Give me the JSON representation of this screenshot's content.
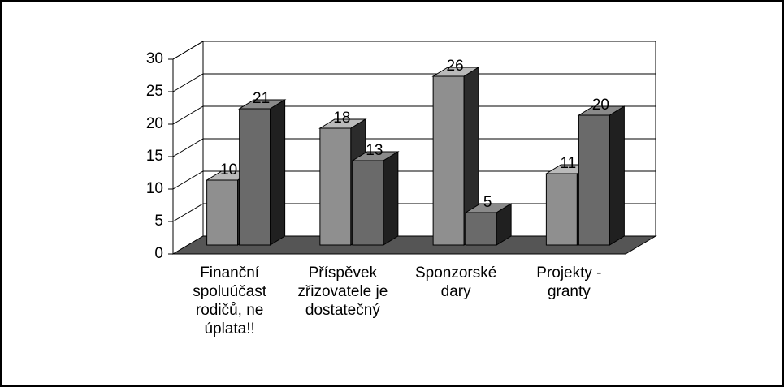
{
  "chart_data": {
    "type": "bar3d",
    "categories": [
      "Finanční\nspoluúčast\nrodičů, ne\núplata!!",
      "Příspěvek\nzřizovatele je\ndostatečný",
      "Sponzorské\ndary",
      "Projekty -\ngranty"
    ],
    "series": [
      {
        "color": "#8f8f8f",
        "values": [
          10,
          18,
          26,
          11
        ]
      },
      {
        "color": "#6a6a6a",
        "values": [
          21,
          13,
          5,
          20
        ]
      }
    ],
    "ylim": [
      0,
      30
    ],
    "yticks": [
      0,
      5,
      10,
      15,
      20,
      25,
      30
    ],
    "grid": true
  }
}
